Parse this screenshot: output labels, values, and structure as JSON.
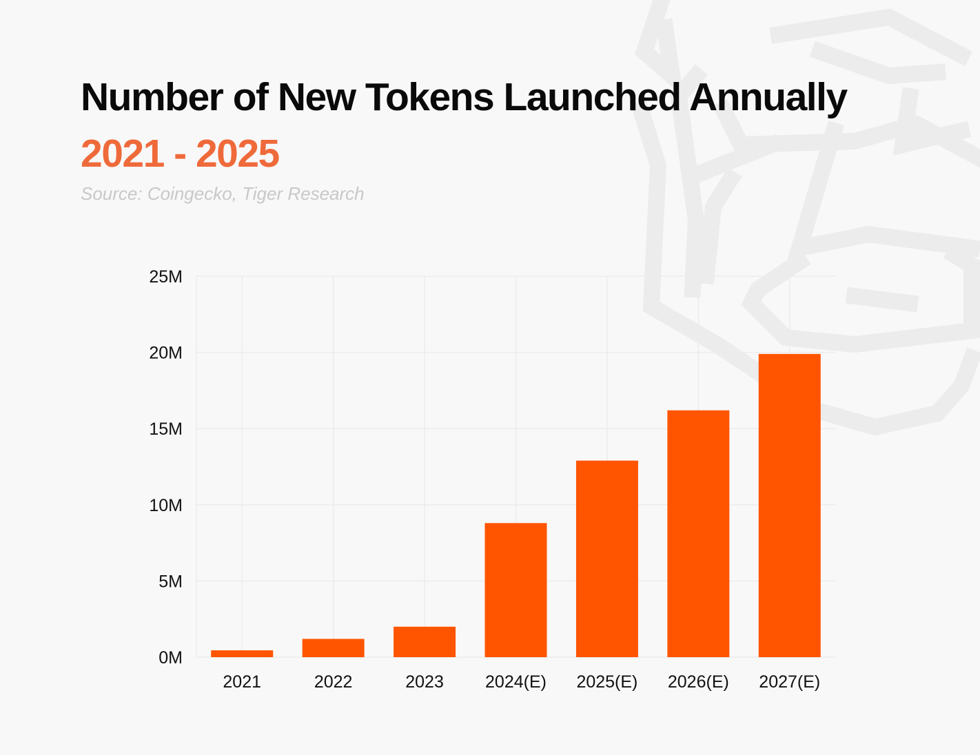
{
  "header": {
    "title": "Number of New Tokens Launched Annually",
    "subtitle": "2021 - 2025",
    "source": "Source: Coingecko, Tiger Research"
  },
  "colors": {
    "bar": "#ff5500",
    "title": "#0a0a0a",
    "subtitle": "#ef6a3a",
    "source": "#c8c8c8",
    "grid": "#ececec",
    "watermark": "#ececec"
  },
  "chart_data": {
    "type": "bar",
    "title": "Number of New Tokens Launched Annually",
    "subtitle": "2021 - 2025",
    "xlabel": "",
    "ylabel": "",
    "categories": [
      "2021",
      "2022",
      "2023",
      "2024(E)",
      "2025(E)",
      "2026(E)",
      "2027(E)"
    ],
    "values": [
      0.45,
      1.2,
      2.0,
      8.8,
      12.9,
      16.2,
      19.9
    ],
    "value_unit": "M",
    "ylim": [
      0,
      25
    ],
    "yticks": [
      0,
      5,
      10,
      15,
      20,
      25
    ],
    "ytick_labels": [
      "0M",
      "5M",
      "10M",
      "15M",
      "20M",
      "25M"
    ],
    "grid": true,
    "legend": "none"
  }
}
